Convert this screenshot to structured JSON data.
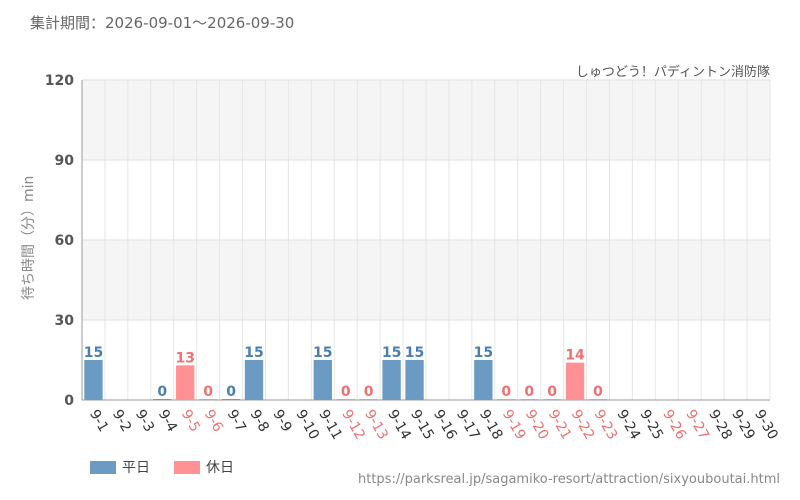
{
  "header": {
    "period": "集計期間：2026-09-01～2026-09-30",
    "attraction": "しゅつどう！パディントン消防隊"
  },
  "legend": {
    "weekday": "平日",
    "holiday": "休日"
  },
  "source_url": "https://parksreal.jp/sagamiko-resort/attraction/sixyoubo utai.html",
  "colors": {
    "weekday": "#6b9bc3",
    "holiday": "#ff9194",
    "weekday_label": "#4a7fb0",
    "holiday_label": "#f07070"
  },
  "chart_data": {
    "type": "bar",
    "ylabel": "待ち時間（分）min",
    "ylim": [
      0,
      120
    ],
    "yticks": [
      "0",
      "30",
      "60",
      "90",
      "120"
    ],
    "categories": [
      "9-1",
      "9-2",
      "9-3",
      "9-4",
      "9-5",
      "9-6",
      "9-7",
      "9-8",
      "9-9",
      "9-10",
      "9-11",
      "9-12",
      "9-13",
      "9-14",
      "9-15",
      "9-16",
      "9-17",
      "9-18",
      "9-19",
      "9-20",
      "9-21",
      "9-22",
      "9-23",
      "9-24",
      "9-25",
      "9-26",
      "9-27",
      "9-28",
      "9-29",
      "9-30"
    ],
    "values": [
      15,
      null,
      null,
      0,
      13,
      0,
      0,
      15,
      null,
      null,
      15,
      0,
      0,
      15,
      15,
      null,
      null,
      15,
      0,
      0,
      0,
      14,
      0,
      null,
      null,
      null,
      null,
      null,
      null,
      null
    ],
    "day_type": [
      "weekday",
      "weekday",
      "weekday",
      "weekday",
      "holiday",
      "holiday",
      "weekday",
      "weekday",
      "weekday",
      "weekday",
      "weekday",
      "holiday",
      "holiday",
      "weekday",
      "weekday",
      "weekday",
      "weekday",
      "weekday",
      "holiday",
      "holiday",
      "holiday",
      "holiday",
      "holiday",
      "weekday",
      "weekday",
      "holiday",
      "holiday",
      "weekday",
      "weekday",
      "weekday"
    ]
  }
}
